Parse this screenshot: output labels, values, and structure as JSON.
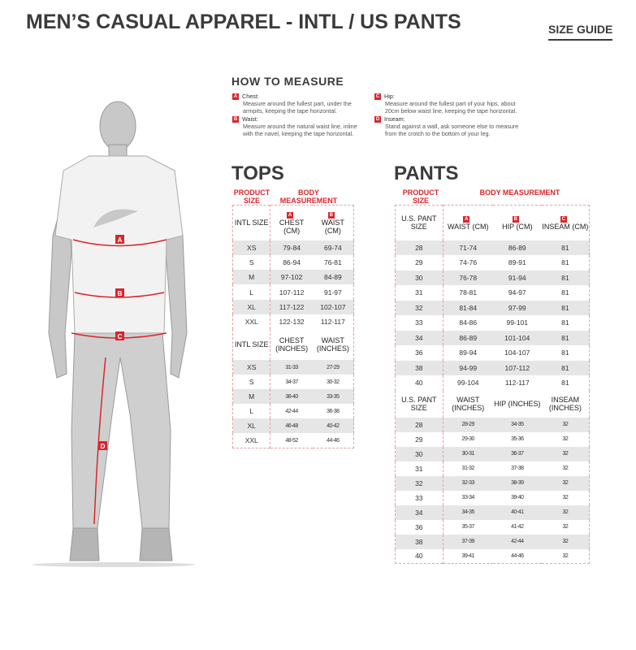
{
  "header": {
    "title": "MEN’S CASUAL APPAREL - INTL / US PANTS",
    "size_guide": "SIZE GUIDE"
  },
  "how_to_measure": {
    "title": "HOW TO MEASURE",
    "items": [
      {
        "letter": "A",
        "label": "Chest:",
        "text": "Measure around the fullest part, under the armpits, keeping the tape horizontal."
      },
      {
        "letter": "B",
        "label": "Waist:",
        "text": "Measure around the natural waist line, inline with the navel, keeping the tape horizontal."
      },
      {
        "letter": "C",
        "label": "Hip:",
        "text": "Measure around the fullest part of your hips, about 20cm below waist line, keeping the tape horizontal."
      },
      {
        "letter": "D",
        "label": "Inseam:",
        "text": "Stand against a wall, ask someone else to measure from the crotch to the bottom of your leg."
      }
    ]
  },
  "figure": {
    "labels": [
      "A",
      "B",
      "C",
      "D"
    ],
    "accent": "#d9262d"
  },
  "tops": {
    "title": "TOPS",
    "product_size": "PRODUCT SIZE",
    "body_measurement": "BODY MEASUREMENT",
    "letters": [
      "A",
      "B"
    ],
    "cm_header": [
      "INTL SIZE",
      "CHEST (CM)",
      "WAIST (CM)"
    ],
    "cm_rows": [
      [
        "XS",
        "79-84",
        "69-74"
      ],
      [
        "S",
        "86-94",
        "76-81"
      ],
      [
        "M",
        "97-102",
        "84-89"
      ],
      [
        "L",
        "107-112",
        "91-97"
      ],
      [
        "XL",
        "117-122",
        "102-107"
      ],
      [
        "XXL",
        "122-132",
        "112-117"
      ]
    ],
    "in_header": [
      "INTL SIZE",
      "CHEST (INCHES)",
      "WAIST (INCHES)"
    ],
    "in_rows": [
      [
        "XS",
        "31-33",
        "27-29"
      ],
      [
        "S",
        "34-37",
        "30-32"
      ],
      [
        "M",
        "38-40",
        "33-35"
      ],
      [
        "L",
        "42-44",
        "36-38"
      ],
      [
        "XL",
        "46-48",
        "40-42"
      ],
      [
        "XXL",
        "48-52",
        "44-46"
      ]
    ]
  },
  "pants": {
    "title": "PANTS",
    "product_size": "PRODUCT SIZE",
    "body_measurement": "BODY MEASUREMENT",
    "letters": [
      "A",
      "B",
      "C"
    ],
    "cm_header": [
      "U.S. PANT SIZE",
      "WAIST (CM)",
      "HIP (CM)",
      "INSEAM (CM)"
    ],
    "cm_rows": [
      [
        "28",
        "71-74",
        "86-89",
        "81"
      ],
      [
        "29",
        "74-76",
        "89-91",
        "81"
      ],
      [
        "30",
        "76-78",
        "91-94",
        "81"
      ],
      [
        "31",
        "78-81",
        "94-97",
        "81"
      ],
      [
        "32",
        "81-84",
        "97-99",
        "81"
      ],
      [
        "33",
        "84-86",
        "99-101",
        "81"
      ],
      [
        "34",
        "86-89",
        "101-104",
        "81"
      ],
      [
        "36",
        "89-94",
        "104-107",
        "81"
      ],
      [
        "38",
        "94-99",
        "107-112",
        "81"
      ],
      [
        "40",
        "99-104",
        "112-117",
        "81"
      ]
    ],
    "in_header": [
      "U.S. PANT SIZE",
      "WAIST (INCHES)",
      "HIP (INCHES)",
      "INSEAM (INCHES)"
    ],
    "in_rows": [
      [
        "28",
        "28-29",
        "34-35",
        "32"
      ],
      [
        "29",
        "29-30",
        "35-36",
        "32"
      ],
      [
        "30",
        "30-31",
        "36-37",
        "32"
      ],
      [
        "31",
        "31-32",
        "37-38",
        "32"
      ],
      [
        "32",
        "32-33",
        "38-39",
        "32"
      ],
      [
        "33",
        "33-34",
        "39-40",
        "32"
      ],
      [
        "34",
        "34-35",
        "40-41",
        "32"
      ],
      [
        "36",
        "35-37",
        "41-42",
        "32"
      ],
      [
        "38",
        "37-39",
        "42-44",
        "32"
      ],
      [
        "40",
        "39-41",
        "44-46",
        "32"
      ]
    ]
  }
}
